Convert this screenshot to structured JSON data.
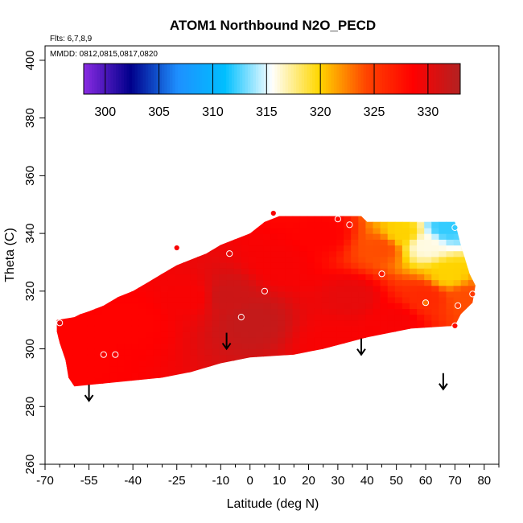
{
  "chart_data": {
    "type": "heatmap",
    "title": "ATOM1 Northbound N2O_PECD",
    "xlabel": "Latitude (deg N)",
    "ylabel": "Theta (C)",
    "annotations": {
      "flights": "Flts: 6,7,8,9",
      "dates": "MMDD: 0812,0815,0817,0820"
    },
    "xlim": [
      -70,
      85
    ],
    "ylim": [
      260,
      405
    ],
    "x_ticks": [
      -70,
      -55,
      -40,
      -25,
      -10,
      0,
      10,
      20,
      30,
      40,
      50,
      60,
      70,
      80
    ],
    "x_minor_ticks": [
      -65,
      -60,
      -50,
      -45,
      -35,
      -30,
      -20,
      -15,
      -5,
      5,
      15,
      25,
      35,
      45,
      55,
      65,
      75,
      85
    ],
    "y_ticks": [
      260,
      280,
      300,
      320,
      340,
      360,
      380,
      400
    ],
    "colorbar": {
      "min": 298,
      "max": 333,
      "ticks": [
        300,
        305,
        310,
        315,
        320,
        325,
        330
      ],
      "colors": [
        "#8a2be2",
        "#00008b",
        "#1e90ff",
        "#00bfff",
        "#ffffff",
        "#ffd700",
        "#ff4500",
        "#ff0000",
        "#b22222"
      ]
    },
    "region_polygon": [
      [
        -66,
        310
      ],
      [
        -60,
        311
      ],
      [
        -58,
        312
      ],
      [
        -55,
        313
      ],
      [
        -50,
        315
      ],
      [
        -45,
        318
      ],
      [
        -40,
        320
      ],
      [
        -35,
        323
      ],
      [
        -30,
        326
      ],
      [
        -25,
        329
      ],
      [
        -20,
        331
      ],
      [
        -15,
        333
      ],
      [
        -10,
        336
      ],
      [
        -5,
        338
      ],
      [
        0,
        340
      ],
      [
        5,
        344
      ],
      [
        10,
        346
      ],
      [
        20,
        346
      ],
      [
        30,
        346
      ],
      [
        38,
        346
      ],
      [
        40,
        344
      ],
      [
        70,
        344
      ],
      [
        72,
        336
      ],
      [
        75,
        326
      ],
      [
        77,
        322
      ],
      [
        76,
        316
      ],
      [
        72,
        312
      ],
      [
        70,
        308
      ],
      [
        55,
        307
      ],
      [
        40,
        304
      ],
      [
        25,
        300
      ],
      [
        15,
        298
      ],
      [
        0,
        297
      ],
      [
        -10,
        295
      ],
      [
        -20,
        292
      ],
      [
        -30,
        290
      ],
      [
        -40,
        289
      ],
      [
        -50,
        288
      ],
      [
        -60,
        287
      ],
      [
        -62,
        290
      ],
      [
        -63,
        296
      ],
      [
        -65,
        302
      ],
      [
        -66,
        306
      ]
    ],
    "field_anchors": [
      {
        "lat": -60,
        "theta": 300,
        "value": 328.5
      },
      {
        "lat": -40,
        "theta": 310,
        "value": 328.5
      },
      {
        "lat": -20,
        "theta": 318,
        "value": 329
      },
      {
        "lat": -8,
        "theta": 318,
        "value": 331.5
      },
      {
        "lat": 0,
        "theta": 310,
        "value": 332
      },
      {
        "lat": 10,
        "theta": 330,
        "value": 329
      },
      {
        "lat": 25,
        "theta": 340,
        "value": 328.5
      },
      {
        "lat": 35,
        "theta": 318,
        "value": 330
      },
      {
        "lat": 45,
        "theta": 335,
        "value": 324
      },
      {
        "lat": 52,
        "theta": 340,
        "value": 320
      },
      {
        "lat": 60,
        "theta": 336,
        "value": 316
      },
      {
        "lat": 67,
        "theta": 342,
        "value": 312
      },
      {
        "lat": 68,
        "theta": 326,
        "value": 320
      },
      {
        "lat": 60,
        "theta": 318,
        "value": 326
      },
      {
        "lat": 74,
        "theta": 318,
        "value": 324
      },
      {
        "lat": 50,
        "theta": 310,
        "value": 329
      },
      {
        "lat": 30,
        "theta": 302,
        "value": 329
      }
    ],
    "sample_points": [
      {
        "lat": -65,
        "theta": 309,
        "value": 330
      },
      {
        "lat": -50,
        "theta": 298,
        "value": 329
      },
      {
        "lat": -46,
        "theta": 298,
        "value": 329
      },
      {
        "lat": -25,
        "theta": 335,
        "value": 329
      },
      {
        "lat": -7,
        "theta": 333,
        "value": 330
      },
      {
        "lat": -3,
        "theta": 311,
        "value": 332
      },
      {
        "lat": 5,
        "theta": 320,
        "value": 330
      },
      {
        "lat": 8,
        "theta": 347,
        "value": 329
      },
      {
        "lat": 30,
        "theta": 345,
        "value": 328
      },
      {
        "lat": 34,
        "theta": 343,
        "value": 328
      },
      {
        "lat": 45,
        "theta": 326,
        "value": 327
      },
      {
        "lat": 60,
        "theta": 316,
        "value": 323
      },
      {
        "lat": 70,
        "theta": 342,
        "value": 312
      },
      {
        "lat": 71,
        "theta": 315,
        "value": 325
      },
      {
        "lat": 70,
        "theta": 308,
        "value": 328
      },
      {
        "lat": 76,
        "theta": 319,
        "value": 325
      }
    ],
    "arrows": [
      {
        "lat": -55,
        "theta": 282
      },
      {
        "lat": -8,
        "theta": 300
      },
      {
        "lat": 38,
        "theta": 298
      },
      {
        "lat": 66,
        "theta": 286
      }
    ]
  }
}
